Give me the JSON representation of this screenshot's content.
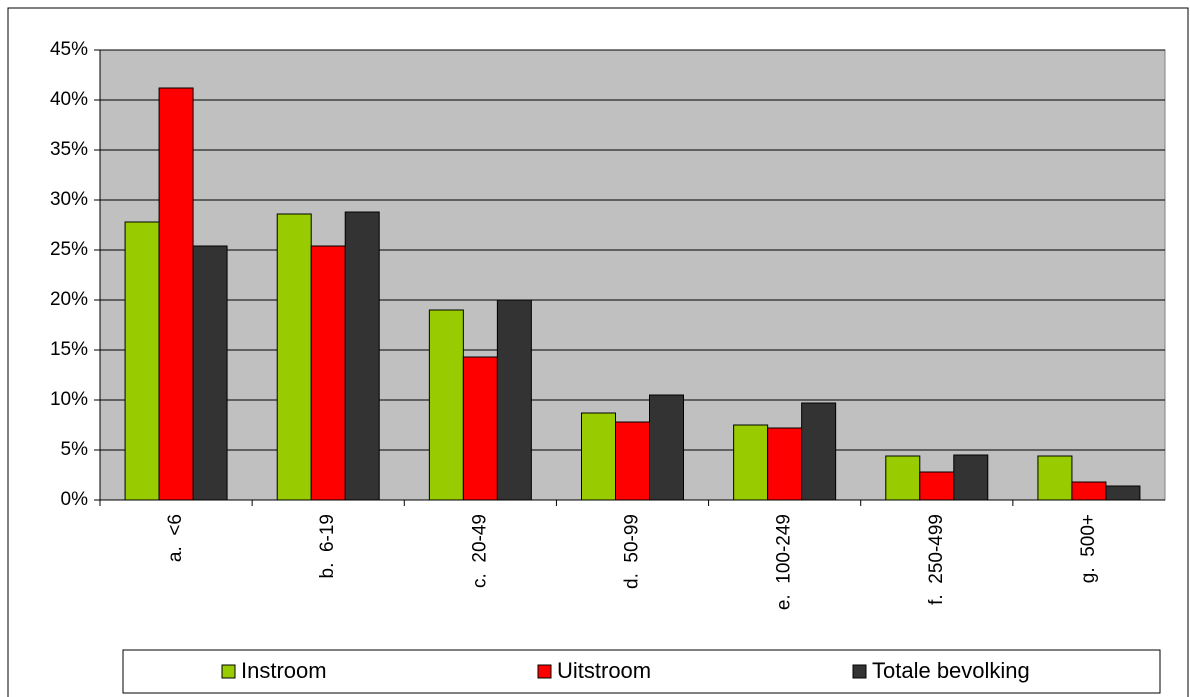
{
  "chart_data": {
    "type": "bar",
    "categories": [
      "a.  <6",
      "b.  6-19",
      "c.  20-49",
      "d.  50-99",
      "e.  100-249",
      "f.  250-499",
      "g.  500+"
    ],
    "series": [
      {
        "name": "Instroom",
        "color": "#99cc00",
        "values": [
          27.8,
          28.6,
          19.0,
          8.7,
          7.5,
          4.4,
          4.4
        ]
      },
      {
        "name": "Uitstroom",
        "color": "#ff0000",
        "values": [
          41.2,
          25.4,
          14.3,
          7.8,
          7.2,
          2.8,
          1.8
        ]
      },
      {
        "name": "Totale bevolking",
        "color": "#333333",
        "values": [
          25.4,
          28.8,
          20.0,
          10.5,
          9.7,
          4.5,
          1.4
        ]
      }
    ],
    "ylim": [
      0,
      45
    ],
    "yticks": [
      {
        "value": 0,
        "label": "0%"
      },
      {
        "value": 5,
        "label": "5%"
      },
      {
        "value": 10,
        "label": "10%"
      },
      {
        "value": 15,
        "label": "15%"
      },
      {
        "value": 20,
        "label": "20%"
      },
      {
        "value": 25,
        "label": "25%"
      },
      {
        "value": 30,
        "label": "30%"
      },
      {
        "value": 35,
        "label": "35%"
      },
      {
        "value": 40,
        "label": "40%"
      },
      {
        "value": 45,
        "label": "45%"
      }
    ],
    "grid": true,
    "legend": "bottom"
  }
}
